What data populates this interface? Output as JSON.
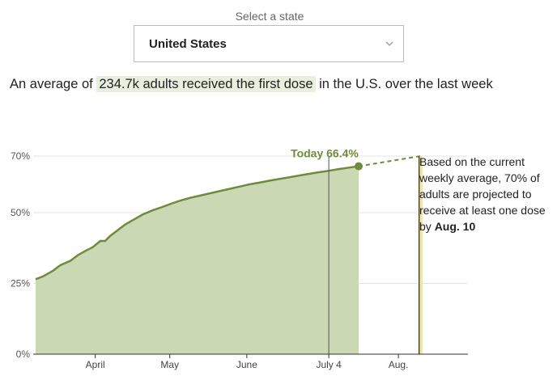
{
  "selector": {
    "label": "Select a state",
    "value": "United States",
    "icon": "chevron-down-icon"
  },
  "summary": {
    "prefix": "An average of",
    "highlight": "234.7k adults received the first dose",
    "suffix": "in the U.S. over the last week"
  },
  "colors": {
    "area_fill": "#cad8b3",
    "line": "#6f8a3e",
    "target_band": "#f2e6a0",
    "grid": "#e3e3e3"
  },
  "chart_data": {
    "type": "area",
    "y_ticks": [
      {
        "label": "0%",
        "value": 0
      },
      {
        "label": "25%",
        "value": 25
      },
      {
        "label": "50%",
        "value": 50
      },
      {
        "label": "70%",
        "value": 70
      }
    ],
    "x_ticks": [
      {
        "label": "April",
        "date": "2021-04-01"
      },
      {
        "label": "May",
        "date": "2021-05-01"
      },
      {
        "label": "June",
        "date": "2021-06-01"
      },
      {
        "label": "July 4",
        "date": "2021-07-04"
      },
      {
        "label": "Aug.",
        "date": "2021-08-01"
      }
    ],
    "ylim": [
      0,
      70
    ],
    "xlim": [
      "2021-03-08",
      "2021-08-29"
    ],
    "series": [
      {
        "points": [
          [
            "2021-03-08",
            26.5
          ],
          [
            "2021-03-11",
            27.5
          ],
          [
            "2021-03-15",
            29.5
          ],
          [
            "2021-03-18",
            31.5
          ],
          [
            "2021-03-22",
            33.0
          ],
          [
            "2021-03-25",
            35.0
          ],
          [
            "2021-03-28",
            36.5
          ],
          [
            "2021-03-31",
            37.8
          ],
          [
            "2021-04-03",
            40.0
          ],
          [
            "2021-04-05",
            40.0
          ],
          [
            "2021-04-07",
            41.8
          ],
          [
            "2021-04-10",
            43.8
          ],
          [
            "2021-04-13",
            45.8
          ],
          [
            "2021-04-17",
            47.8
          ],
          [
            "2021-04-20",
            49.3
          ],
          [
            "2021-04-24",
            50.8
          ],
          [
            "2021-04-28",
            52.0
          ],
          [
            "2021-05-01",
            53.0
          ],
          [
            "2021-05-05",
            54.2
          ],
          [
            "2021-05-09",
            55.2
          ],
          [
            "2021-05-13",
            56.0
          ],
          [
            "2021-05-17",
            56.8
          ],
          [
            "2021-05-21",
            57.6
          ],
          [
            "2021-05-25",
            58.4
          ],
          [
            "2021-05-29",
            59.2
          ],
          [
            "2021-06-02",
            60.0
          ],
          [
            "2021-06-06",
            60.6
          ],
          [
            "2021-06-10",
            61.3
          ],
          [
            "2021-06-14",
            61.9
          ],
          [
            "2021-06-18",
            62.5
          ],
          [
            "2021-06-22",
            63.1
          ],
          [
            "2021-06-26",
            63.7
          ],
          [
            "2021-06-30",
            64.3
          ],
          [
            "2021-07-04",
            64.8
          ],
          [
            "2021-07-08",
            65.4
          ],
          [
            "2021-07-12",
            65.9
          ],
          [
            "2021-07-16",
            66.4
          ]
        ]
      }
    ],
    "today": {
      "label": "Today 66.4%",
      "date": "2021-07-16",
      "value": 66.4
    },
    "projection": {
      "from": [
        "2021-07-16",
        66.4
      ],
      "to": [
        "2021-08-10",
        70.0
      ],
      "style": "dashed"
    },
    "markers": [
      {
        "date": "2021-07-04",
        "style": "line"
      },
      {
        "date": "2021-08-10",
        "style": "band"
      }
    ],
    "annotation": {
      "text": "Based on the current weekly average, 70% of adults are projected to receive at least one dose by",
      "date_text": "Aug. 10"
    }
  }
}
